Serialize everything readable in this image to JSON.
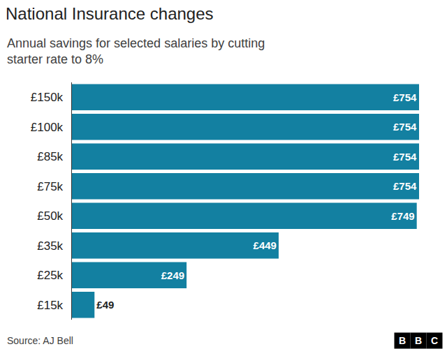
{
  "chart_data": {
    "type": "bar",
    "orientation": "horizontal",
    "title": "National Insurance changes",
    "subtitle": [
      "Annual savings for selected salaries by cutting",
      "starter rate to 8%"
    ],
    "categories": [
      "£150k",
      "£100k",
      "£85k",
      "£75k",
      "£50k",
      "£35k",
      "£25k",
      "£15k"
    ],
    "values": [
      754,
      754,
      754,
      754,
      749,
      449,
      249,
      49
    ],
    "value_labels": [
      "£754",
      "£754",
      "£754",
      "£754",
      "£749",
      "£449",
      "£249",
      "£49"
    ],
    "data_labels": true,
    "color": "#1380a1",
    "xlim": [
      0,
      754
    ],
    "tick_labels": "y",
    "grid": false,
    "source": "Source: AJ Bell",
    "logo": "BBC"
  }
}
